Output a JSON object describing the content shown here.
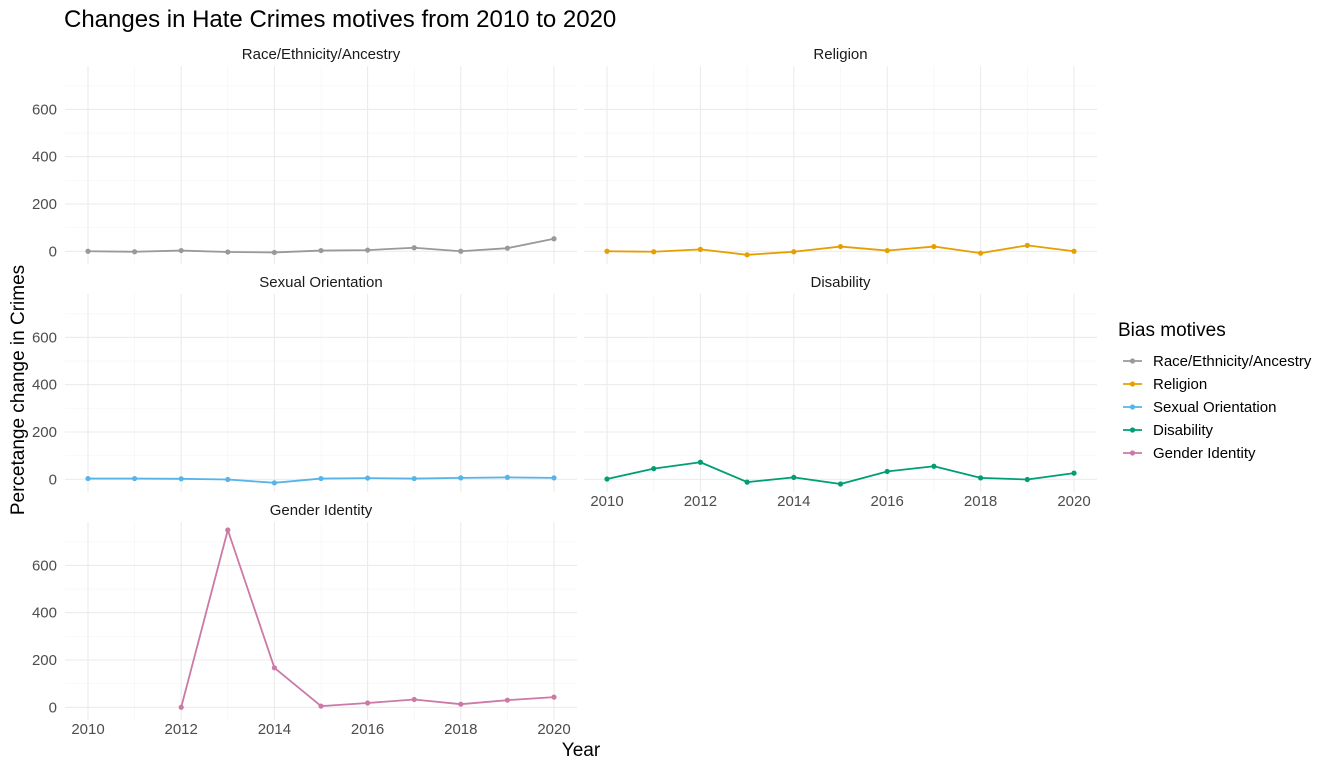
{
  "chart_data": {
    "type": "line",
    "title": "Changes in Hate Crimes motives from 2010 to 2020",
    "xlabel": "Year",
    "ylabel": "Percetange change in Crimes",
    "xlim": [
      2010,
      2020
    ],
    "ylim": [
      0,
      750
    ],
    "x_ticks": [
      2010,
      2012,
      2014,
      2016,
      2018,
      2020
    ],
    "y_ticks": [
      0,
      200,
      400,
      600
    ],
    "grid": true,
    "facets": true,
    "legend": {
      "title": "Bias motives",
      "position": "right"
    },
    "x": [
      2010,
      2011,
      2012,
      2013,
      2014,
      2015,
      2016,
      2017,
      2018,
      2019,
      2020
    ],
    "series": [
      {
        "name": "Race/Ethnicity/Ancestry",
        "color": "#999999",
        "values": [
          0,
          -2,
          3,
          -3,
          -5,
          3,
          5,
          15,
          0,
          13,
          53
        ]
      },
      {
        "name": "Religion",
        "color": "#E69F00",
        "values": [
          0,
          -2,
          8,
          -15,
          -2,
          20,
          3,
          20,
          -8,
          25,
          0
        ]
      },
      {
        "name": "Sexual Orientation",
        "color": "#56B4E9",
        "values": [
          3,
          3,
          2,
          -1,
          -15,
          3,
          5,
          3,
          6,
          8,
          6
        ]
      },
      {
        "name": "Disability",
        "color": "#009E73",
        "values": [
          1,
          45,
          72,
          -12,
          8,
          -20,
          33,
          55,
          6,
          -1,
          26
        ]
      },
      {
        "name": "Gender Identity",
        "color": "#CC79A7",
        "values": [
          null,
          null,
          0,
          750,
          167,
          5,
          18,
          33,
          13,
          30,
          43
        ]
      }
    ]
  }
}
